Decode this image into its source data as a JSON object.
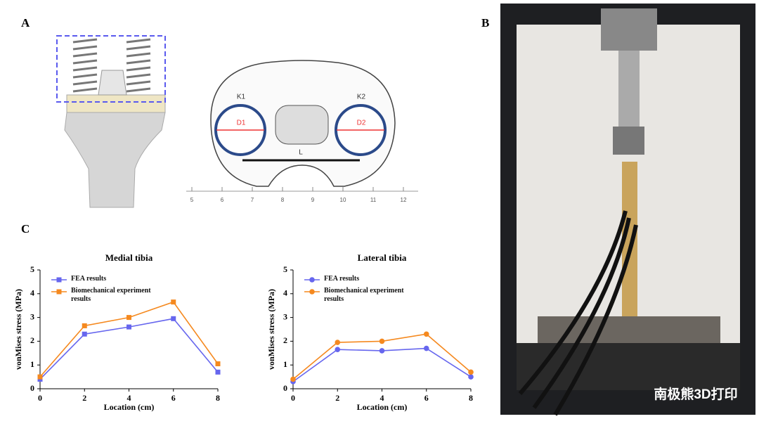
{
  "figure": {
    "panel_labels": [
      "A",
      "B",
      "C"
    ],
    "tibia_labels": [
      "K1",
      "K2",
      "D1",
      "D2",
      "L"
    ],
    "ruler_ticks": [
      5,
      6,
      7,
      8,
      9,
      10,
      11,
      12
    ],
    "watermark": "南极熊3D打印"
  },
  "chart_data": [
    {
      "type": "line",
      "title": "Medial tibia",
      "xlabel": "Location (cm)",
      "ylabel": "vonMises stress (MPa)",
      "marker": "square",
      "legend": "upper left",
      "x": [
        0,
        2,
        4,
        6,
        8
      ],
      "xlim": [
        0,
        8
      ],
      "xticks": [
        0,
        2,
        4,
        6,
        8
      ],
      "ylim": [
        0,
        5
      ],
      "yticks": [
        0,
        1,
        2,
        3,
        4,
        5
      ],
      "series": [
        {
          "name": "FEA results",
          "color": "#6666ee",
          "values": [
            0.4,
            2.3,
            2.6,
            2.95,
            0.7
          ]
        },
        {
          "name": "Biomechanical experiment results",
          "color": "#f5891f",
          "values": [
            0.5,
            2.65,
            3.0,
            3.65,
            1.05
          ]
        }
      ]
    },
    {
      "type": "line",
      "title": "Lateral tibia",
      "xlabel": "Location (cm)",
      "ylabel": "vonMises stress (MPa)",
      "marker": "circle",
      "legend": "upper left",
      "x": [
        0,
        2,
        4,
        6,
        8
      ],
      "xlim": [
        0,
        8
      ],
      "xticks": [
        0,
        2,
        4,
        6,
        8
      ],
      "ylim": [
        0,
        5
      ],
      "yticks": [
        0,
        1,
        2,
        3,
        4,
        5
      ],
      "series": [
        {
          "name": "FEA results",
          "color": "#6666ee",
          "values": [
            0.3,
            1.65,
            1.6,
            1.7,
            0.5
          ]
        },
        {
          "name": "Biomechanical experiment results",
          "color": "#f5891f",
          "values": [
            0.4,
            1.95,
            2.0,
            2.3,
            0.7
          ]
        }
      ]
    }
  ]
}
